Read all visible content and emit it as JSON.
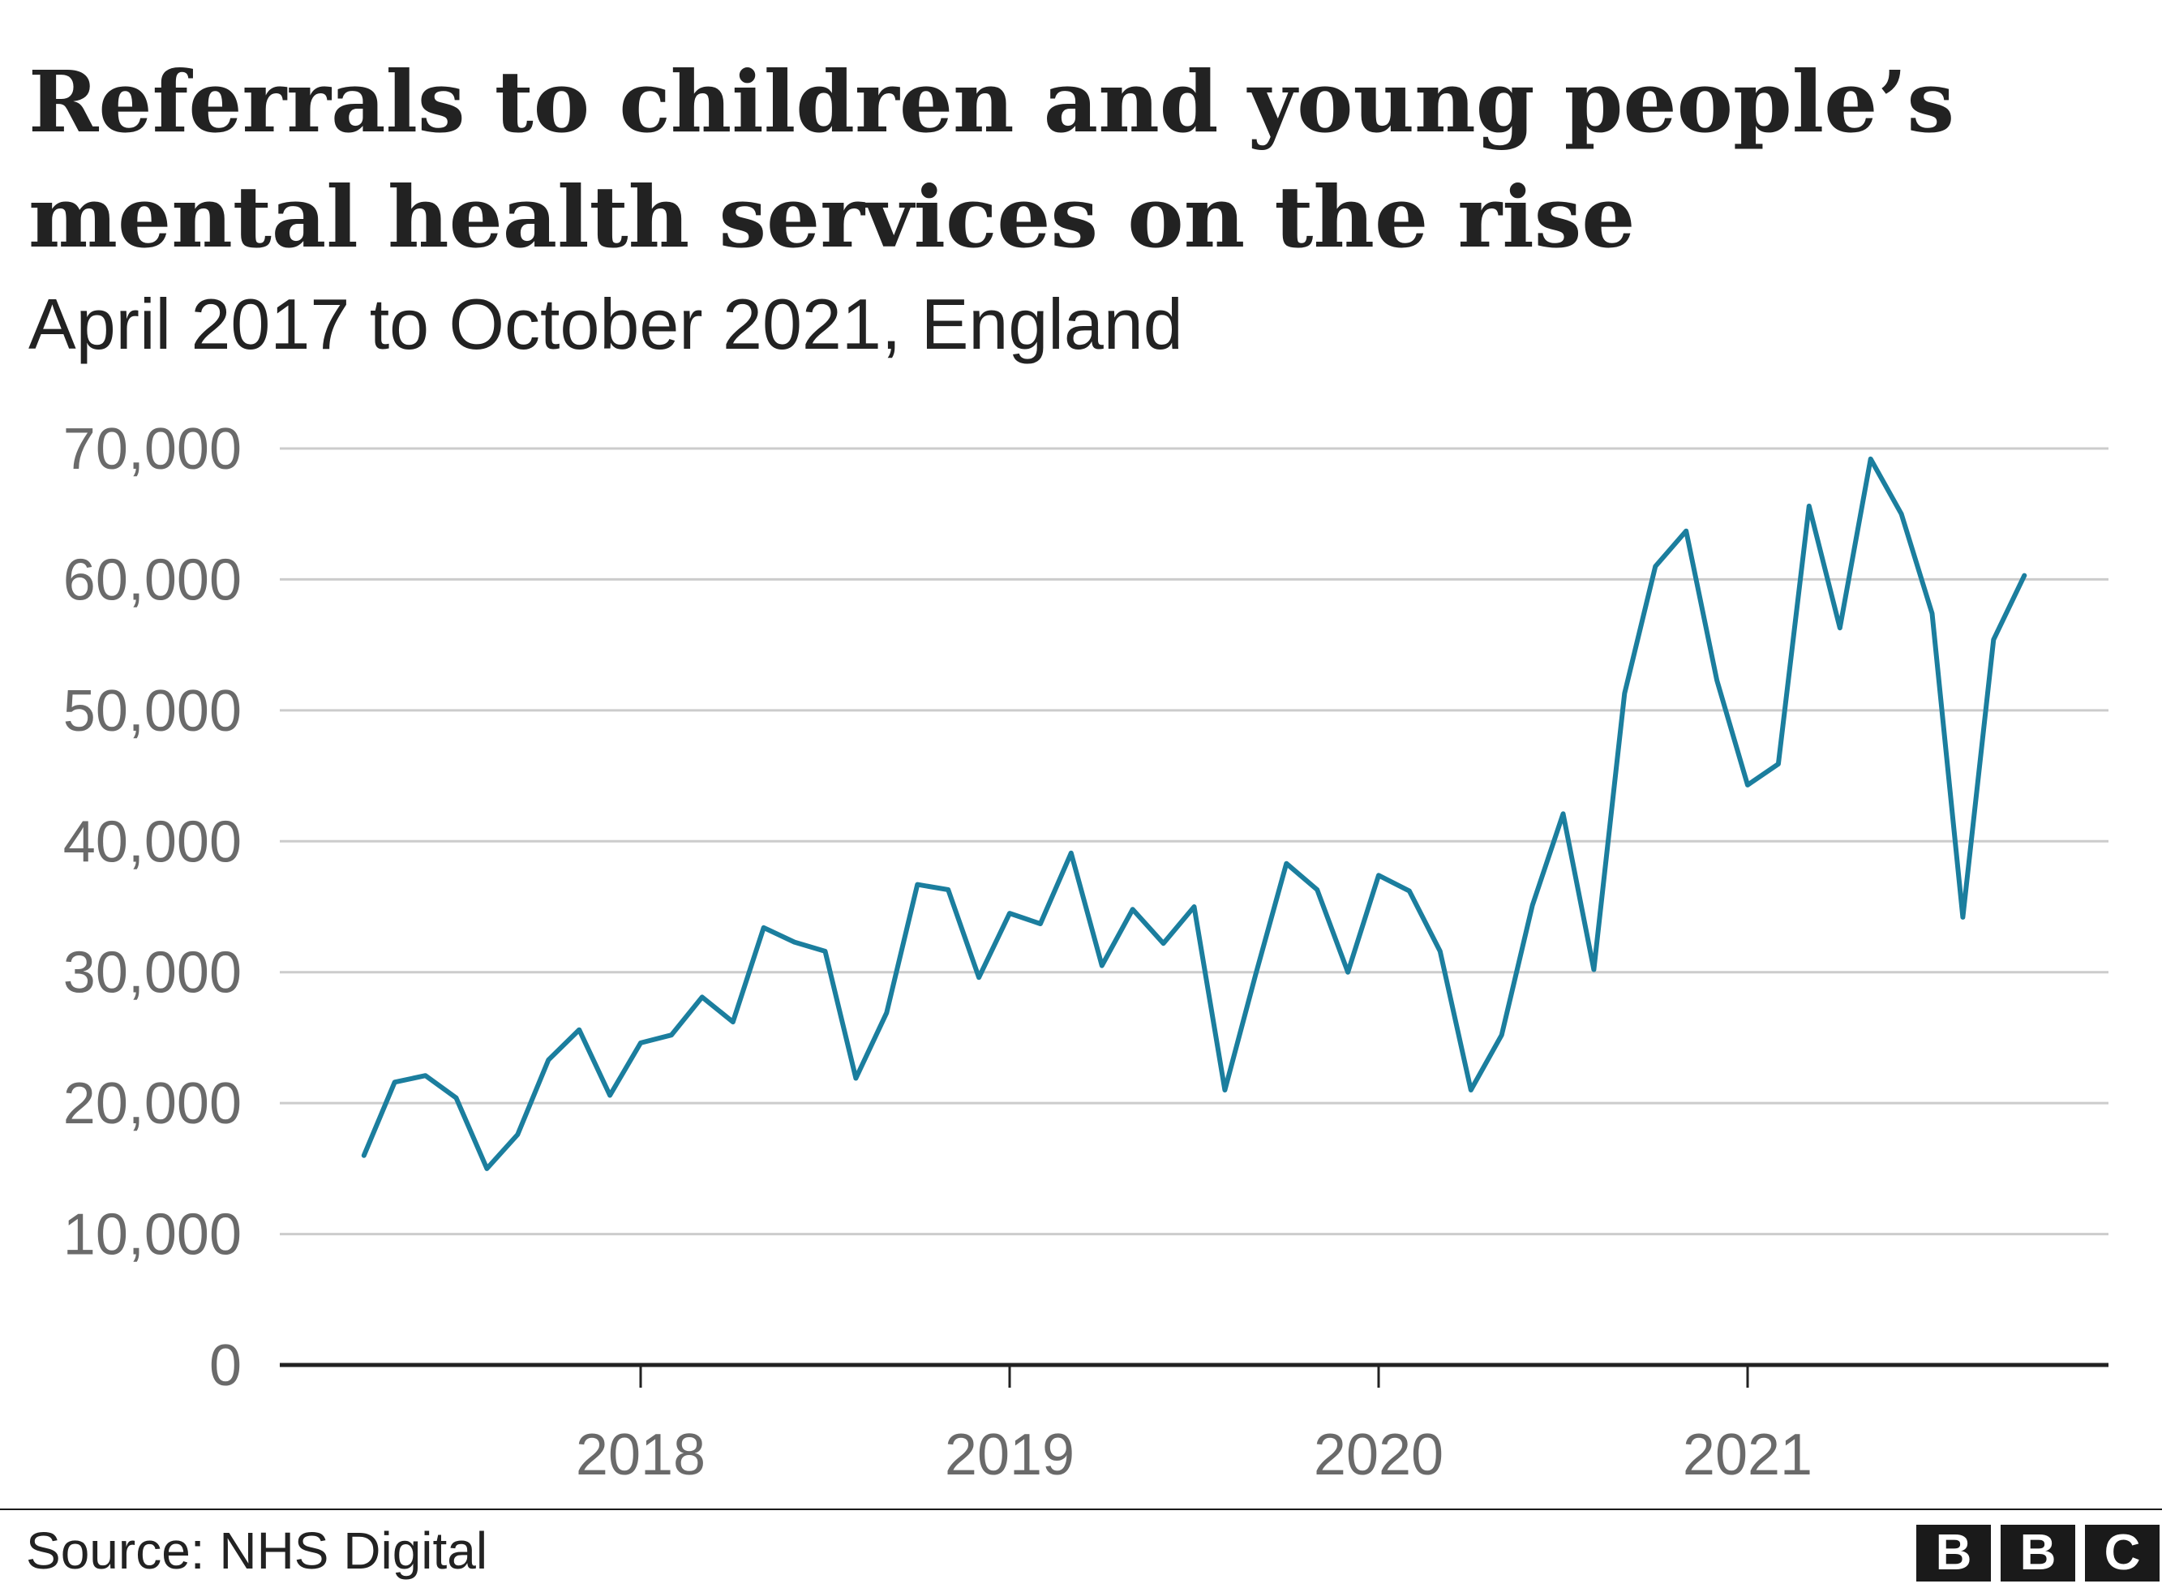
{
  "title": "Referrals to children and young people’s mental health services on the rise",
  "subtitle": "April 2017 to October 2021, England",
  "source": "Source: NHS Digital",
  "logo_text": [
    "B",
    "B",
    "C"
  ],
  "colors": {
    "line": "#1b7e9e",
    "grid": "#cccccc",
    "axis": "#222222",
    "tick_text": "#6a6a6a"
  },
  "chart_data": {
    "type": "line",
    "title": "Referrals to children and young people’s mental health services on the rise",
    "subtitle": "April 2017 to October 2021, England",
    "xlabel": "",
    "ylabel": "",
    "ylim": [
      0,
      70000
    ],
    "yticks": [
      0,
      10000,
      20000,
      30000,
      40000,
      50000,
      60000,
      70000
    ],
    "ytick_labels": [
      "0",
      "10,000",
      "20,000",
      "30,000",
      "40,000",
      "50,000",
      "60,000",
      "70,000"
    ],
    "xticks": [
      "2018",
      "2019",
      "2020",
      "2021"
    ],
    "grid": true,
    "legend": "none",
    "x_start": "2017-04",
    "x_end": "2021-10",
    "x_unit": "month",
    "series": [
      {
        "name": "Referrals",
        "values": [
          16000,
          21600,
          22100,
          20400,
          15000,
          17600,
          23300,
          25600,
          20600,
          24600,
          25200,
          28100,
          26200,
          33400,
          32300,
          31600,
          21900,
          26900,
          36700,
          36300,
          29600,
          34500,
          33700,
          39100,
          30500,
          34800,
          32200,
          35000,
          21000,
          29800,
          38300,
          36300,
          30000,
          37400,
          36200,
          31600,
          21000,
          25200,
          35100,
          42100,
          30200,
          51300,
          61000,
          63700,
          52300,
          44300,
          45900,
          65600,
          56300,
          69200,
          65000,
          57400,
          34200,
          55400,
          60300
        ]
      }
    ]
  }
}
